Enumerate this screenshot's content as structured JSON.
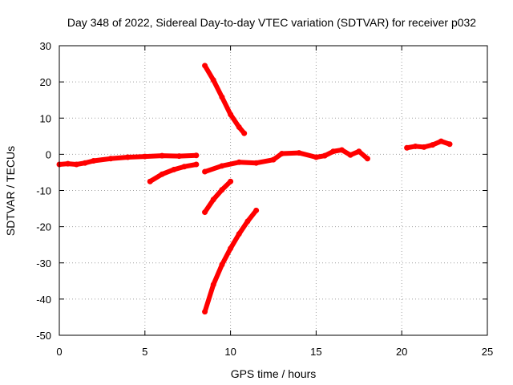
{
  "chart_data": {
    "type": "scatter",
    "title": "Day 348 of 2022, Sidereal Day-to-day VTEC variation (SDTVAR) for receiver p032",
    "xlabel": "GPS time / hours",
    "ylabel": "SDTVAR / TECUs",
    "xlim": [
      0,
      25
    ],
    "ylim": [
      -50,
      30
    ],
    "xticks": [
      0,
      5,
      10,
      15,
      20,
      25
    ],
    "yticks": [
      30,
      20,
      10,
      0,
      -10,
      -20,
      -30,
      -40,
      -50
    ],
    "grid": true,
    "legend": "none",
    "series_color": "#ff0000",
    "series": [
      {
        "x": [
          0.0,
          0.5,
          1.0,
          1.5,
          2.0,
          3.0,
          4.0,
          5.0,
          6.0,
          7.0,
          8.0
        ],
        "y": [
          -2.8,
          -2.6,
          -2.8,
          -2.4,
          -1.8,
          -1.2,
          -0.8,
          -0.6,
          -0.4,
          -0.5,
          -0.3
        ]
      },
      {
        "x": [
          5.3,
          6.0,
          6.7,
          7.3,
          8.0
        ],
        "y": [
          -7.5,
          -5.5,
          -4.2,
          -3.4,
          -2.8
        ]
      },
      {
        "x": [
          8.5,
          9.0,
          9.5,
          10.0,
          10.5,
          10.8
        ],
        "y": [
          24.5,
          20.5,
          15.8,
          11.0,
          7.5,
          5.8
        ]
      },
      {
        "x": [
          8.5,
          9.0,
          9.5,
          10.0
        ],
        "y": [
          -16.0,
          -12.5,
          -9.8,
          -7.5
        ]
      },
      {
        "x": [
          8.5,
          9.0,
          9.5,
          10.0,
          10.5,
          11.0,
          11.5
        ],
        "y": [
          -43.5,
          -36.0,
          -30.5,
          -26.0,
          -22.0,
          -18.5,
          -15.5
        ]
      },
      {
        "x": [
          8.5,
          9.5,
          10.5,
          11.5,
          12.5,
          13.0,
          14.0,
          15.0,
          15.5,
          16.0,
          16.5,
          17.0,
          17.5,
          18.0
        ],
        "y": [
          -4.8,
          -3.2,
          -2.2,
          -2.4,
          -1.5,
          0.2,
          0.4,
          -0.8,
          -0.4,
          0.8,
          1.2,
          -0.2,
          0.8,
          -1.2
        ]
      },
      {
        "x": [
          20.3,
          20.8,
          21.3,
          21.8,
          22.3,
          22.8
        ],
        "y": [
          1.8,
          2.2,
          2.0,
          2.6,
          3.6,
          2.8
        ]
      }
    ]
  }
}
